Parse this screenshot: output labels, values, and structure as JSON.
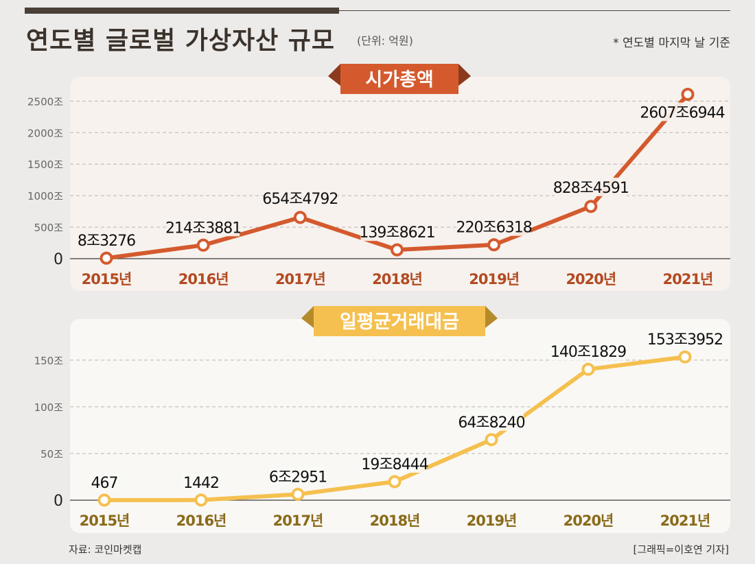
{
  "header": {
    "title": "연도별 글로벌 가상자산 규모",
    "unit": "(단위: 억원)",
    "note": "* 연도별 마지막 날 기준"
  },
  "footer": {
    "source": "자료: 코인마켓캡",
    "credit": "[그래픽=이호연 기자]"
  },
  "chart_data": [
    {
      "type": "line",
      "title": "시가총액",
      "categories": [
        "2015년",
        "2016년",
        "2017년",
        "2018년",
        "2019년",
        "2020년",
        "2021년"
      ],
      "values": [
        8.3276,
        214.3881,
        654.4792,
        139.8621,
        220.6318,
        828.4591,
        2607.6944
      ],
      "labels": [
        "8조3276",
        "214조3881",
        "654조4792",
        "139조8621",
        "220조6318",
        "828조4591",
        "2607조6944"
      ],
      "yticks": [
        0,
        500,
        1000,
        1500,
        2000,
        2500
      ],
      "ytick_labels": [
        "0",
        "500조",
        "1000조",
        "1500조",
        "2000조",
        "2500조"
      ],
      "ylim": [
        0,
        2700
      ],
      "grid": true,
      "color": "#d45a2e",
      "xtick_color": "#b24a22",
      "banner_color": "#d45a2e",
      "banner_dark": "#8b3a1c",
      "banner_text_color": "#ffffff"
    },
    {
      "type": "line",
      "title": "일평균거래대금",
      "categories": [
        "2015년",
        "2016년",
        "2017년",
        "2018년",
        "2019년",
        "2020년",
        "2021년"
      ],
      "values": [
        0.0467,
        0.1442,
        6.2951,
        19.8444,
        64.824,
        140.1829,
        153.3952
      ],
      "labels": [
        "467",
        "1442",
        "6조2951",
        "19조8444",
        "64조8240",
        "140조1829",
        "153조3952"
      ],
      "yticks": [
        0,
        50,
        100,
        150
      ],
      "ytick_labels": [
        "0",
        "50조",
        "100조",
        "150조"
      ],
      "ylim": [
        0,
        180
      ],
      "grid": true,
      "color": "#f5c04f",
      "xtick_color": "#8a6a1a",
      "banner_color": "#f5c04f",
      "banner_dark": "#b58a2a",
      "banner_text_color": "#ffffff"
    }
  ]
}
